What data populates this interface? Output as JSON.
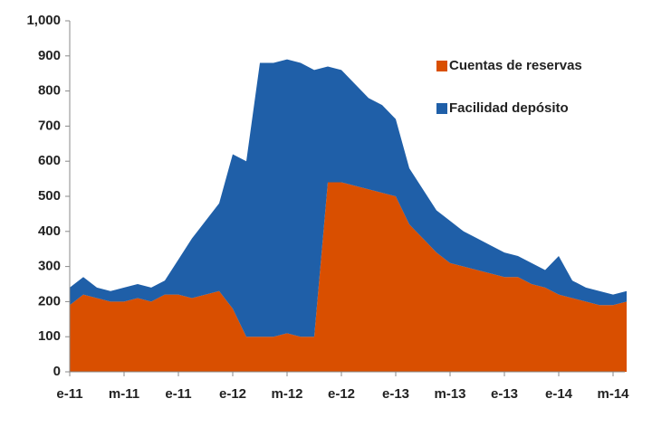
{
  "chart_data": {
    "type": "stacked_area",
    "categories": [
      "e-11",
      null,
      null,
      null,
      "m-11",
      null,
      null,
      null,
      "e-11",
      null,
      null,
      null,
      "e-12",
      null,
      null,
      null,
      "m-12",
      null,
      null,
      null,
      "e-12",
      null,
      null,
      null,
      "e-13",
      null,
      null,
      null,
      "m-13",
      null,
      null,
      null,
      "e-13",
      null,
      null,
      null,
      "e-14",
      null,
      null,
      null,
      "m-14",
      null
    ],
    "series": [
      {
        "name": "Cuentas de reservas",
        "color": "#d94f00",
        "values": [
          190,
          220,
          210,
          200,
          200,
          210,
          200,
          220,
          220,
          210,
          220,
          230,
          180,
          100,
          100,
          100,
          110,
          100,
          100,
          540,
          540,
          530,
          520,
          510,
          500,
          420,
          380,
          340,
          310,
          300,
          290,
          280,
          270,
          270,
          250,
          240,
          220,
          210,
          200,
          190,
          190,
          200
        ]
      },
      {
        "name": "Facilidad depósito",
        "color": "#1f5fa8",
        "values": [
          50,
          50,
          30,
          30,
          40,
          40,
          40,
          40,
          100,
          170,
          210,
          250,
          440,
          500,
          780,
          780,
          780,
          780,
          760,
          330,
          320,
          290,
          260,
          250,
          220,
          160,
          140,
          120,
          120,
          100,
          90,
          80,
          70,
          60,
          60,
          50,
          110,
          50,
          40,
          40,
          30,
          30
        ]
      }
    ],
    "ylim": [
      0,
      1000
    ],
    "yticks": [
      0,
      100,
      200,
      300,
      400,
      500,
      600,
      700,
      800,
      900,
      {
        "value": 1000,
        "label": "1,000"
      }
    ],
    "grid": false,
    "legend": "upper right"
  }
}
